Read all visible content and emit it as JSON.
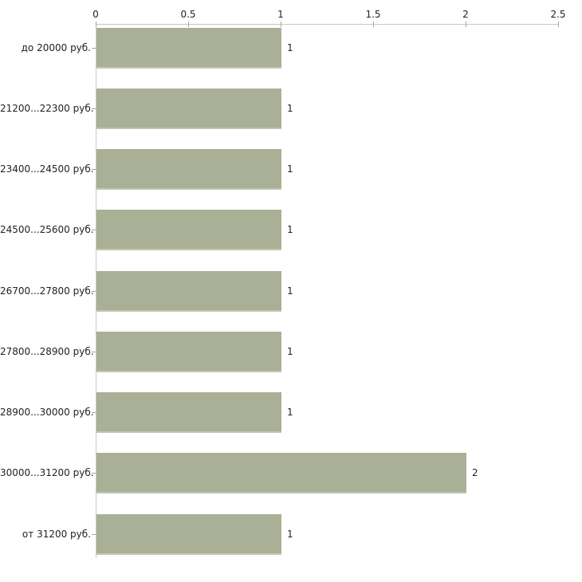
{
  "chart_data": {
    "type": "bar",
    "orientation": "horizontal",
    "title": "",
    "xlabel": "",
    "ylabel": "",
    "categories": [
      "до 20000 руб.",
      "21200...22300 руб.",
      "23400...24500 руб.",
      "24500...25600 руб.",
      "26700...27800 руб.",
      "27800...28900 руб.",
      "28900...30000 руб.",
      "30000...31200 руб.",
      "от 31200 руб."
    ],
    "values": [
      1,
      1,
      1,
      1,
      1,
      1,
      1,
      2,
      1
    ],
    "value_labels": [
      "1",
      "1",
      "1",
      "1",
      "1",
      "1",
      "1",
      "2",
      "1"
    ],
    "x_ticks": [
      0,
      0.5,
      1,
      1.5,
      2,
      2.5
    ],
    "x_tick_labels": [
      "0",
      "0.5",
      "1",
      "1.5",
      "2",
      "2.5"
    ],
    "xlim": [
      0,
      2.5
    ],
    "grid": false,
    "legend": "none",
    "axis_position": "top-left",
    "colors": {
      "bar_fill": "#a9b096",
      "bar_edge": "#c2c8b1",
      "axis_line": "#c8c8c8",
      "tick_mark": "#a8a87c",
      "text": "#222222",
      "background": "#ffffff"
    }
  }
}
